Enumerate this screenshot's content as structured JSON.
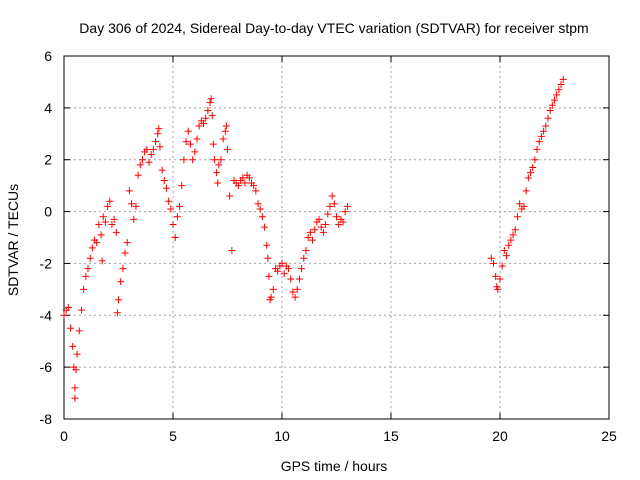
{
  "chart_data": {
    "type": "scatter",
    "title": "Day 306 of 2024, Sidereal Day-to-day VTEC variation (SDTVAR) for receiver stpm",
    "xlabel": "GPS time / hours",
    "ylabel": "SDTVAR / TECUs",
    "xlim": [
      0,
      25
    ],
    "ylim": [
      -8,
      6
    ],
    "xticks": [
      0,
      5,
      10,
      15,
      20,
      25
    ],
    "yticks": [
      -8,
      -6,
      -4,
      -2,
      0,
      2,
      4,
      6
    ],
    "grid": true,
    "marker": "+",
    "color": "#ff0000",
    "series": [
      {
        "name": "SDTVAR",
        "points": [
          [
            0.0,
            -4.0
          ],
          [
            0.1,
            -3.8
          ],
          [
            0.2,
            -3.7
          ],
          [
            0.3,
            -4.5
          ],
          [
            0.4,
            -5.2
          ],
          [
            0.45,
            -6.0
          ],
          [
            0.5,
            -6.8
          ],
          [
            0.5,
            -7.2
          ],
          [
            0.55,
            -6.1
          ],
          [
            0.6,
            -5.5
          ],
          [
            0.7,
            -4.6
          ],
          [
            0.8,
            -3.8
          ],
          [
            0.9,
            -3.0
          ],
          [
            1.0,
            -2.5
          ],
          [
            1.1,
            -2.2
          ],
          [
            1.2,
            -1.8
          ],
          [
            1.3,
            -1.4
          ],
          [
            1.4,
            -1.1
          ],
          [
            1.5,
            -1.2
          ],
          [
            1.6,
            -0.5
          ],
          [
            1.7,
            -0.9
          ],
          [
            1.75,
            -1.9
          ],
          [
            1.8,
            -0.2
          ],
          [
            1.9,
            -0.4
          ],
          [
            2.0,
            0.2
          ],
          [
            2.1,
            0.4
          ],
          [
            2.2,
            -0.5
          ],
          [
            2.3,
            -0.3
          ],
          [
            2.4,
            -0.8
          ],
          [
            2.45,
            -3.9
          ],
          [
            2.5,
            -3.4
          ],
          [
            2.6,
            -2.7
          ],
          [
            2.7,
            -2.2
          ],
          [
            2.8,
            -1.6
          ],
          [
            2.9,
            -1.2
          ],
          [
            3.0,
            0.8
          ],
          [
            3.1,
            0.3
          ],
          [
            3.2,
            -0.3
          ],
          [
            3.3,
            0.2
          ],
          [
            3.4,
            1.4
          ],
          [
            3.5,
            1.8
          ],
          [
            3.6,
            2.0
          ],
          [
            3.7,
            2.3
          ],
          [
            3.8,
            2.4
          ],
          [
            3.9,
            1.9
          ],
          [
            4.0,
            2.2
          ],
          [
            4.1,
            2.4
          ],
          [
            4.2,
            2.7
          ],
          [
            4.3,
            3.0
          ],
          [
            4.35,
            3.2
          ],
          [
            4.4,
            2.5
          ],
          [
            4.5,
            1.6
          ],
          [
            4.6,
            1.2
          ],
          [
            4.7,
            0.9
          ],
          [
            4.8,
            0.4
          ],
          [
            4.9,
            0.1
          ],
          [
            5.0,
            -0.5
          ],
          [
            5.1,
            -1.0
          ],
          [
            5.2,
            -0.2
          ],
          [
            5.3,
            0.2
          ],
          [
            5.4,
            1.0
          ],
          [
            5.5,
            2.0
          ],
          [
            5.6,
            2.7
          ],
          [
            5.7,
            3.1
          ],
          [
            5.8,
            2.6
          ],
          [
            5.9,
            2.0
          ],
          [
            6.0,
            2.3
          ],
          [
            6.1,
            2.8
          ],
          [
            6.2,
            3.3
          ],
          [
            6.3,
            3.5
          ],
          [
            6.4,
            3.4
          ],
          [
            6.5,
            3.6
          ],
          [
            6.6,
            3.9
          ],
          [
            6.7,
            4.2
          ],
          [
            6.75,
            4.35
          ],
          [
            6.8,
            3.7
          ],
          [
            6.85,
            2.6
          ],
          [
            6.9,
            2.0
          ],
          [
            7.0,
            1.5
          ],
          [
            7.05,
            1.1
          ],
          [
            7.1,
            1.8
          ],
          [
            7.2,
            2.0
          ],
          [
            7.3,
            2.8
          ],
          [
            7.4,
            3.1
          ],
          [
            7.45,
            3.3
          ],
          [
            7.5,
            2.4
          ],
          [
            7.6,
            0.6
          ],
          [
            7.7,
            -1.5
          ],
          [
            7.8,
            1.2
          ],
          [
            7.9,
            1.1
          ],
          [
            8.0,
            1.0
          ],
          [
            8.1,
            1.2
          ],
          [
            8.2,
            1.3
          ],
          [
            8.3,
            1.1
          ],
          [
            8.4,
            1.4
          ],
          [
            8.5,
            1.3
          ],
          [
            8.6,
            1.1
          ],
          [
            8.7,
            1.0
          ],
          [
            8.8,
            0.8
          ],
          [
            8.9,
            0.3
          ],
          [
            9.0,
            0.1
          ],
          [
            9.1,
            -0.2
          ],
          [
            9.2,
            -0.6
          ],
          [
            9.3,
            -1.3
          ],
          [
            9.35,
            -1.8
          ],
          [
            9.4,
            -2.5
          ],
          [
            9.45,
            -3.4
          ],
          [
            9.5,
            -3.3
          ],
          [
            9.6,
            -3.0
          ],
          [
            9.7,
            -2.2
          ],
          [
            9.8,
            -2.3
          ],
          [
            9.9,
            -2.1
          ],
          [
            10.0,
            -2.0
          ],
          [
            10.1,
            -2.4
          ],
          [
            10.2,
            -2.1
          ],
          [
            10.3,
            -2.2
          ],
          [
            10.4,
            -2.6
          ],
          [
            10.5,
            -3.1
          ],
          [
            10.6,
            -3.3
          ],
          [
            10.7,
            -3.0
          ],
          [
            10.8,
            -2.6
          ],
          [
            10.9,
            -2.2
          ],
          [
            11.0,
            -1.8
          ],
          [
            11.1,
            -1.5
          ],
          [
            11.2,
            -1.0
          ],
          [
            11.3,
            -0.8
          ],
          [
            11.4,
            -1.1
          ],
          [
            11.5,
            -0.7
          ],
          [
            11.6,
            -0.4
          ],
          [
            11.7,
            -0.3
          ],
          [
            11.8,
            -0.6
          ],
          [
            11.9,
            -0.8
          ],
          [
            12.0,
            -0.5
          ],
          [
            12.1,
            -0.1
          ],
          [
            12.2,
            0.2
          ],
          [
            12.3,
            0.6
          ],
          [
            12.4,
            0.3
          ],
          [
            12.5,
            -0.2
          ],
          [
            12.6,
            -0.5
          ],
          [
            12.7,
            -0.3
          ],
          [
            12.8,
            -0.4
          ],
          [
            12.9,
            0.0
          ],
          [
            13.0,
            0.2
          ],
          [
            19.6,
            -1.8
          ],
          [
            19.7,
            -2.0
          ],
          [
            19.8,
            -2.5
          ],
          [
            19.85,
            -2.9
          ],
          [
            19.9,
            -3.0
          ],
          [
            20.0,
            -2.6
          ],
          [
            20.1,
            -2.1
          ],
          [
            20.2,
            -1.5
          ],
          [
            20.3,
            -1.7
          ],
          [
            20.4,
            -1.3
          ],
          [
            20.5,
            -1.1
          ],
          [
            20.6,
            -0.9
          ],
          [
            20.7,
            -0.7
          ],
          [
            20.8,
            -0.2
          ],
          [
            20.9,
            0.3
          ],
          [
            21.0,
            0.1
          ],
          [
            21.1,
            0.2
          ],
          [
            21.2,
            0.8
          ],
          [
            21.3,
            1.3
          ],
          [
            21.4,
            1.5
          ],
          [
            21.5,
            1.7
          ],
          [
            21.6,
            2.0
          ],
          [
            21.7,
            2.4
          ],
          [
            21.8,
            2.7
          ],
          [
            21.9,
            2.9
          ],
          [
            22.0,
            3.1
          ],
          [
            22.1,
            3.3
          ],
          [
            22.2,
            3.6
          ],
          [
            22.3,
            3.9
          ],
          [
            22.4,
            4.1
          ],
          [
            22.5,
            4.3
          ],
          [
            22.6,
            4.5
          ],
          [
            22.7,
            4.7
          ],
          [
            22.8,
            4.9
          ],
          [
            22.9,
            5.1
          ]
        ]
      }
    ]
  }
}
